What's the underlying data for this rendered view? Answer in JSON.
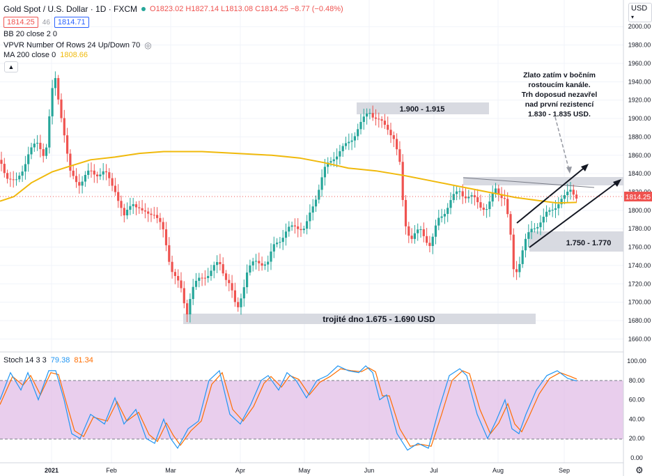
{
  "header": {
    "symbol": "Gold Spot / U.S. Dollar · 1D · FXCM",
    "ohlc": "O1823.02 H1827.14 L1813.08 C1814.25 −8.77 (−0.48%)",
    "bid": "1814.25",
    "spread": "46",
    "ask": "1814.71"
  },
  "indicators": {
    "bb": "BB 20 close 2 0",
    "vpvr": "VPVR Number Of Rows 24 Up/Down 70",
    "ma_label": "MA 200 close 0",
    "ma_value": "1808.66"
  },
  "currency": "USD",
  "last_price_label": "1814.25",
  "stoch": {
    "label": "Stoch 14 3 3",
    "k": "79.38",
    "d": "81.34"
  },
  "colors": {
    "up": "#26a69a",
    "down": "#ef5350",
    "ma": "#f0b90b",
    "stoch_k": "#2196f3",
    "stoch_d": "#ff6d00",
    "stoch_band": "#e1bee7",
    "zone": "#d1d4dc"
  },
  "annotations": {
    "range_top": "1.900 - 1.915",
    "range_mid": "1.750 - 1.770",
    "triple_bottom": "trojité dno 1.675 - 1.690 USD",
    "note": [
      "Zlato zatím v bočním",
      "rostoucím kanále.",
      "Trh doposud nezavřel",
      "nad první rezistencí",
      "1.830 - 1.835 USD."
    ]
  },
  "chart_data": [
    {
      "type": "candlestick",
      "title": "Gold Spot / U.S. Dollar · 1D · FXCM",
      "x_ticks": [
        "2021",
        "Feb",
        "Mar",
        "Apr",
        "May",
        "Jun",
        "Jul",
        "Aug",
        "Sep"
      ],
      "ylim": [
        1650,
        2020
      ],
      "y_ticks": [
        "1660.00",
        "1680.00",
        "1700.00",
        "1720.00",
        "1740.00",
        "1760.00",
        "1780.00",
        "1800.00",
        "1820.00",
        "1840.00",
        "1860.00",
        "1880.00",
        "1900.00",
        "1920.00",
        "1940.00",
        "1960.00",
        "1980.00",
        "2000.00"
      ],
      "ma200": [
        [
          0,
          1810
        ],
        [
          20,
          1815
        ],
        [
          45,
          1830
        ],
        [
          75,
          1842
        ],
        [
          100,
          1848
        ],
        [
          130,
          1855
        ],
        [
          165,
          1858
        ],
        [
          200,
          1862
        ],
        [
          235,
          1864
        ],
        [
          290,
          1864
        ],
        [
          340,
          1862
        ],
        [
          390,
          1860
        ],
        [
          430,
          1857
        ],
        [
          465,
          1852
        ],
        [
          500,
          1846
        ],
        [
          540,
          1843
        ],
        [
          580,
          1838
        ],
        [
          620,
          1832
        ],
        [
          660,
          1826
        ],
        [
          700,
          1820
        ],
        [
          740,
          1814
        ],
        [
          780,
          1810
        ],
        [
          800,
          1808
        ],
        [
          828,
          1808.66
        ]
      ],
      "price_path": [
        [
          0,
          1855
        ],
        [
          12,
          1835
        ],
        [
          22,
          1828
        ],
        [
          40,
          1860
        ],
        [
          55,
          1875
        ],
        [
          65,
          1858
        ],
        [
          78,
          1950
        ],
        [
          90,
          1895
        ],
        [
          100,
          1840
        ],
        [
          115,
          1830
        ],
        [
          130,
          1842
        ],
        [
          150,
          1840
        ],
        [
          165,
          1825
        ],
        [
          178,
          1790
        ],
        [
          190,
          1812
        ],
        [
          205,
          1795
        ],
        [
          220,
          1800
        ],
        [
          235,
          1775
        ],
        [
          245,
          1740
        ],
        [
          260,
          1712
        ],
        [
          268,
          1688
        ],
        [
          275,
          1715
        ],
        [
          295,
          1730
        ],
        [
          315,
          1742
        ],
        [
          330,
          1720
        ],
        [
          340,
          1688
        ],
        [
          355,
          1735
        ],
        [
          370,
          1745
        ],
        [
          385,
          1742
        ],
        [
          395,
          1765
        ],
        [
          410,
          1775
        ],
        [
          425,
          1785
        ],
        [
          438,
          1778
        ],
        [
          452,
          1812
        ],
        [
          465,
          1842
        ],
        [
          480,
          1860
        ],
        [
          495,
          1868
        ],
        [
          510,
          1885
        ],
        [
          520,
          1895
        ],
        [
          530,
          1910
        ],
        [
          545,
          1895
        ],
        [
          558,
          1890
        ],
        [
          565,
          1880
        ],
        [
          575,
          1845
        ],
        [
          580,
          1790
        ],
        [
          590,
          1770
        ],
        [
          605,
          1778
        ],
        [
          618,
          1762
        ],
        [
          630,
          1790
        ],
        [
          645,
          1808
        ],
        [
          660,
          1822
        ],
        [
          670,
          1815
        ],
        [
          685,
          1810
        ],
        [
          700,
          1800
        ],
        [
          712,
          1825
        ],
        [
          725,
          1812
        ],
        [
          733,
          1770
        ],
        [
          738,
          1730
        ],
        [
          744,
          1740
        ],
        [
          752,
          1762
        ],
        [
          765,
          1782
        ],
        [
          780,
          1790
        ],
        [
          795,
          1805
        ],
        [
          810,
          1812
        ],
        [
          820,
          1826
        ],
        [
          828,
          1814.25
        ]
      ]
    },
    {
      "type": "line",
      "title": "Stoch 14 3 3",
      "ylim": [
        0,
        100
      ],
      "y_ticks": [
        "0.00",
        "20.00",
        "40.00",
        "60.00",
        "80.00",
        "100.00"
      ],
      "series": [
        {
          "name": "%K",
          "values": [
            [
              0,
              60
            ],
            [
              15,
              88
            ],
            [
              30,
              70
            ],
            [
              40,
              88
            ],
            [
              55,
              60
            ],
            [
              70,
              90
            ],
            [
              80,
              90
            ],
            [
              92,
              60
            ],
            [
              103,
              25
            ],
            [
              115,
              20
            ],
            [
              130,
              45
            ],
            [
              150,
              35
            ],
            [
              165,
              62
            ],
            [
              178,
              35
            ],
            [
              195,
              50
            ],
            [
              210,
              20
            ],
            [
              222,
              15
            ],
            [
              235,
              40
            ],
            [
              245,
              20
            ],
            [
              255,
              10
            ],
            [
              270,
              30
            ],
            [
              285,
              38
            ],
            [
              300,
              80
            ],
            [
              315,
              90
            ],
            [
              330,
              45
            ],
            [
              345,
              35
            ],
            [
              360,
              55
            ],
            [
              375,
              80
            ],
            [
              385,
              85
            ],
            [
              400,
              70
            ],
            [
              412,
              88
            ],
            [
              425,
              80
            ],
            [
              440,
              62
            ],
            [
              455,
              80
            ],
            [
              470,
              85
            ],
            [
              485,
              95
            ],
            [
              500,
              90
            ],
            [
              515,
              88
            ],
            [
              525,
              95
            ],
            [
              535,
              88
            ],
            [
              545,
              60
            ],
            [
              555,
              65
            ],
            [
              570,
              25
            ],
            [
              585,
              8
            ],
            [
              600,
              15
            ],
            [
              615,
              10
            ],
            [
              630,
              50
            ],
            [
              645,
              85
            ],
            [
              660,
              92
            ],
            [
              670,
              85
            ],
            [
              685,
              45
            ],
            [
              700,
              20
            ],
            [
              712,
              38
            ],
            [
              725,
              60
            ],
            [
              735,
              30
            ],
            [
              745,
              25
            ],
            [
              755,
              45
            ],
            [
              770,
              70
            ],
            [
              785,
              85
            ],
            [
              800,
              90
            ],
            [
              815,
              82
            ],
            [
              828,
              79.38
            ]
          ]
        },
        {
          "name": "%D",
          "values": [
            [
              0,
              55
            ],
            [
              18,
              84
            ],
            [
              33,
              75
            ],
            [
              44,
              85
            ],
            [
              58,
              65
            ],
            [
              73,
              88
            ],
            [
              84,
              86
            ],
            [
              96,
              55
            ],
            [
              107,
              28
            ],
            [
              120,
              22
            ],
            [
              134,
              42
            ],
            [
              154,
              38
            ],
            [
              168,
              58
            ],
            [
              182,
              38
            ],
            [
              199,
              47
            ],
            [
              214,
              24
            ],
            [
              226,
              17
            ],
            [
              239,
              36
            ],
            [
              249,
              23
            ],
            [
              259,
              13
            ],
            [
              274,
              28
            ],
            [
              289,
              38
            ],
            [
              304,
              76
            ],
            [
              319,
              88
            ],
            [
              334,
              50
            ],
            [
              349,
              38
            ],
            [
              364,
              53
            ],
            [
              379,
              77
            ],
            [
              389,
              84
            ],
            [
              404,
              73
            ],
            [
              416,
              85
            ],
            [
              429,
              81
            ],
            [
              444,
              65
            ],
            [
              459,
              78
            ],
            [
              474,
              84
            ],
            [
              489,
              92
            ],
            [
              504,
              90
            ],
            [
              519,
              89
            ],
            [
              529,
              93
            ],
            [
              539,
              89
            ],
            [
              549,
              64
            ],
            [
              559,
              64
            ],
            [
              574,
              30
            ],
            [
              589,
              12
            ],
            [
              604,
              14
            ],
            [
              619,
              12
            ],
            [
              634,
              45
            ],
            [
              649,
              80
            ],
            [
              664,
              90
            ],
            [
              674,
              87
            ],
            [
              689,
              50
            ],
            [
              704,
              25
            ],
            [
              716,
              36
            ],
            [
              729,
              56
            ],
            [
              739,
              35
            ],
            [
              749,
              27
            ],
            [
              759,
              42
            ],
            [
              774,
              66
            ],
            [
              789,
              82
            ],
            [
              804,
              88
            ],
            [
              819,
              84
            ],
            [
              828,
              81.34
            ]
          ]
        }
      ]
    }
  ]
}
